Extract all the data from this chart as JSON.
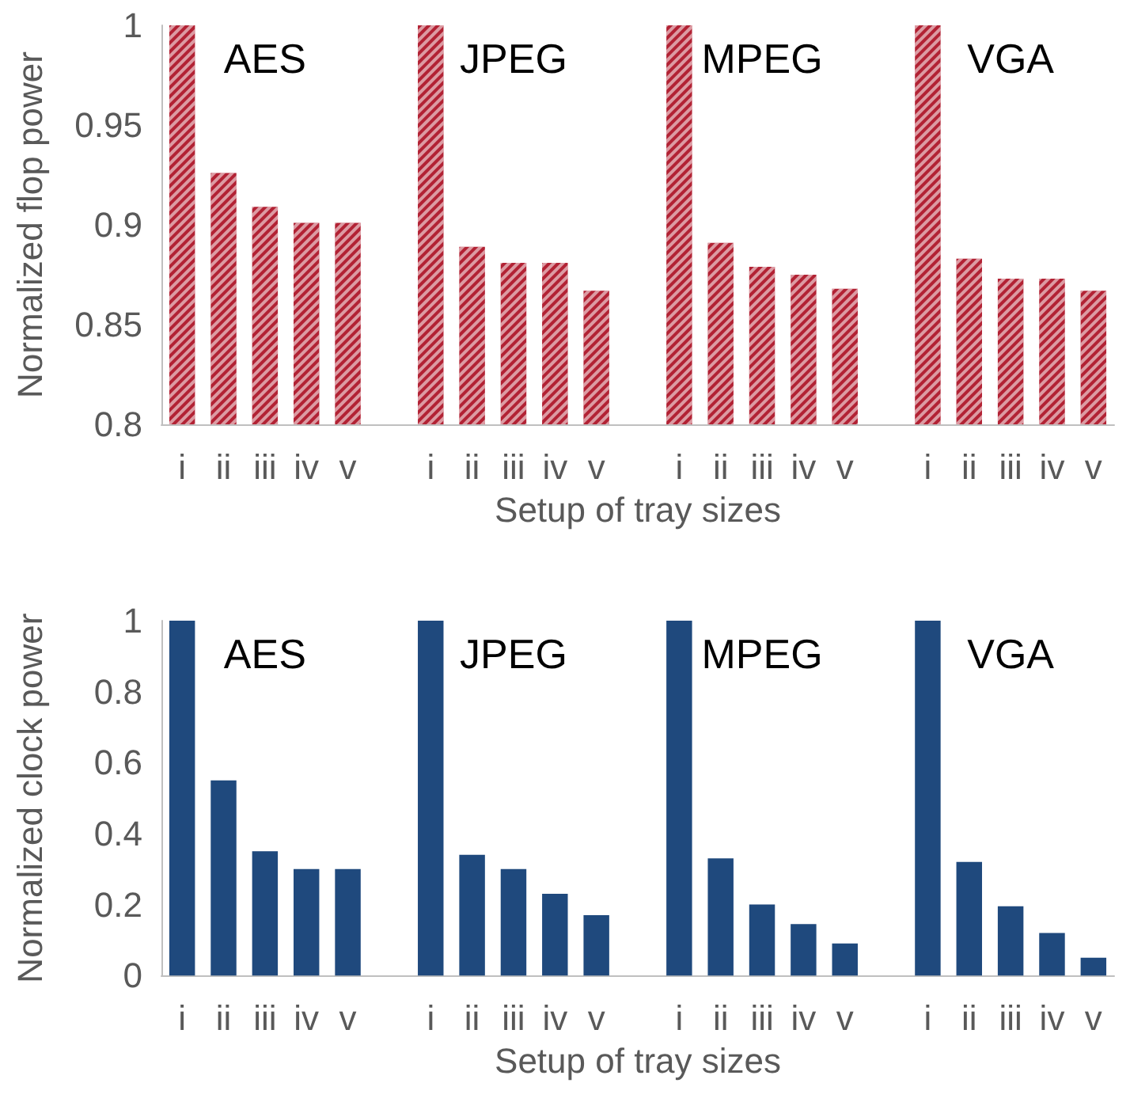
{
  "chart_data": [
    {
      "type": "bar",
      "xlabel": "Setup of tray sizes",
      "ylabel": "Normalized flop power",
      "categories": [
        "i",
        "ii",
        "iii",
        "iv",
        "v",
        null,
        "i",
        "ii",
        "iii",
        "iv",
        "v",
        null,
        "i",
        "ii",
        "iii",
        "iv",
        "v",
        null,
        "i",
        "ii",
        "iii",
        "iv",
        "v"
      ],
      "values": [
        1,
        0.926,
        0.909,
        0.901,
        0.901,
        null,
        1,
        0.889,
        0.881,
        0.881,
        0.867,
        null,
        1,
        0.891,
        0.879,
        0.875,
        0.868,
        null,
        1,
        0.883,
        0.873,
        0.873,
        0.867
      ],
      "color": "#b22234",
      "ylim": [
        0.8,
        1
      ],
      "yticks": [
        0.8,
        0.85,
        0.9,
        0.95,
        1
      ],
      "grid": false,
      "annotations": [
        "AES",
        "JPEG",
        "MPEG",
        "VGA"
      ]
    },
    {
      "type": "bar",
      "xlabel": "Setup of tray sizes",
      "ylabel": "Normalized clock power",
      "categories": [
        "i",
        "ii",
        "iii",
        "iv",
        "v",
        null,
        "i",
        "ii",
        "iii",
        "iv",
        "v",
        null,
        "i",
        "ii",
        "iii",
        "iv",
        "v",
        null,
        "i",
        "ii",
        "iii",
        "iv",
        "v"
      ],
      "values": [
        1,
        0.55,
        0.35,
        0.3,
        0.3,
        null,
        1,
        0.34,
        0.3,
        0.23,
        0.17,
        null,
        1,
        0.33,
        0.2,
        0.145,
        0.09,
        null,
        1,
        0.32,
        0.195,
        0.12,
        0.05
      ],
      "color": "#1f497d",
      "ylim": [
        0,
        1
      ],
      "yticks": [
        0,
        0.2,
        0.4,
        0.6,
        0.8,
        1
      ],
      "grid": false,
      "annotations": [
        "AES",
        "JPEG",
        "MPEG",
        "VGA"
      ]
    }
  ]
}
